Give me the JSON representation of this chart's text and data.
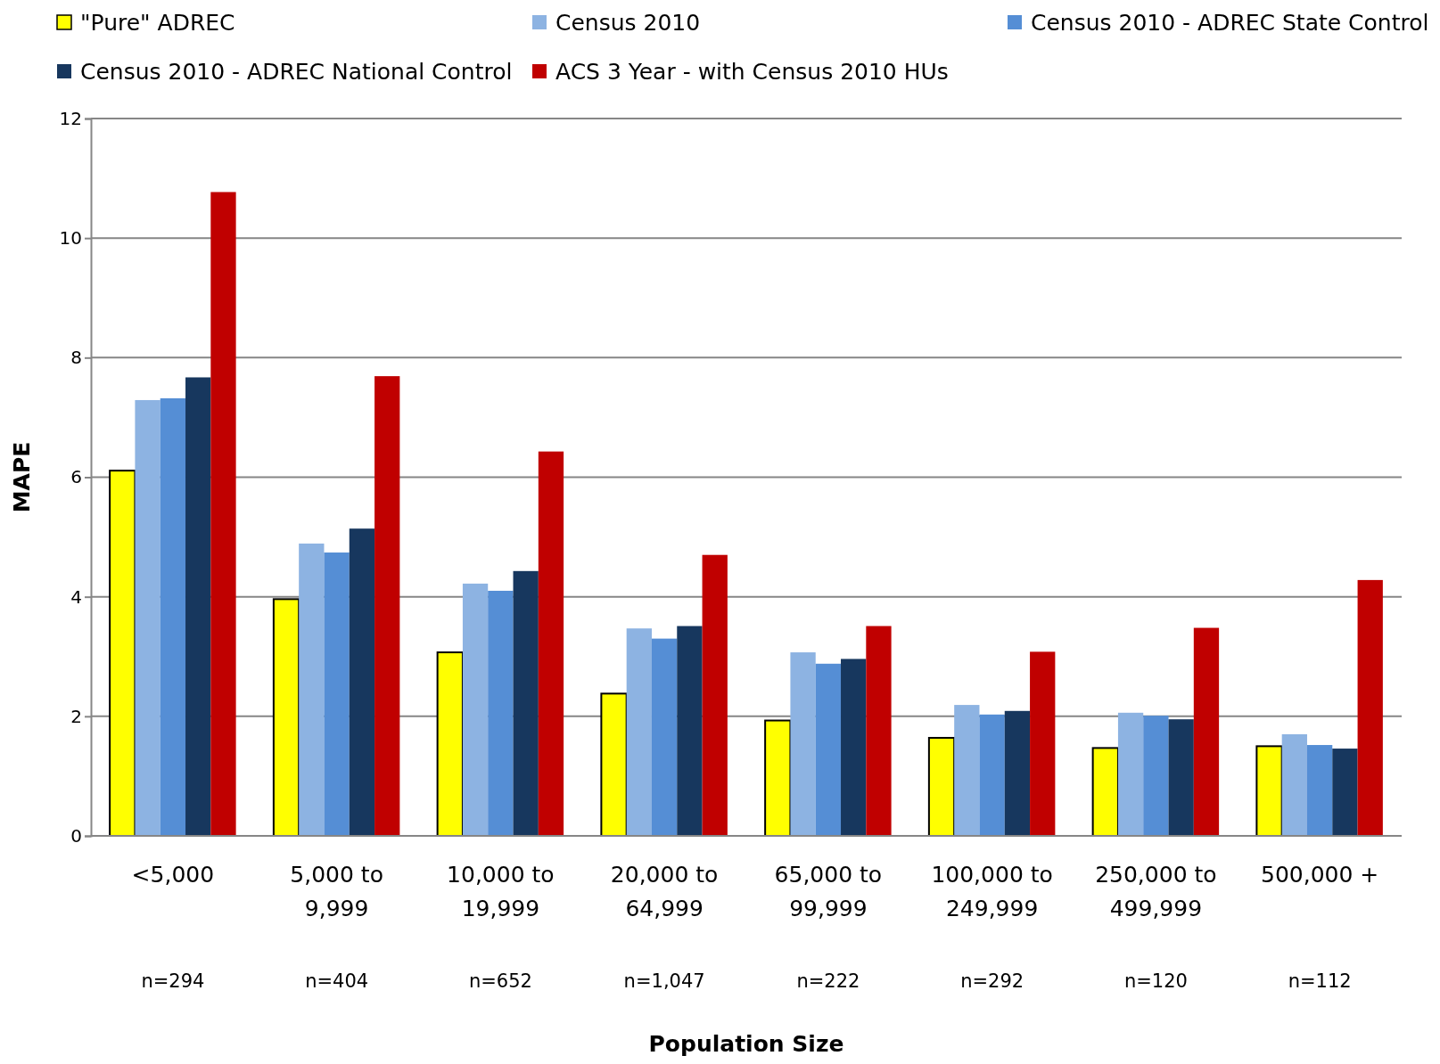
{
  "chart_data": {
    "type": "bar",
    "categories": [
      "<5,000",
      "5,000 to 9,999",
      "10,000 to 19,999",
      "20,000 to 64,999",
      "65,000 to 99,999",
      "100,000 to 249,999",
      "250,000 to 499,999",
      "500,000 +"
    ],
    "series": [
      {
        "name": "\"Pure\" ADREC",
        "color": "#ffff00",
        "values": [
          6.11,
          3.96,
          3.07,
          2.38,
          1.93,
          1.64,
          1.47,
          1.5
        ]
      },
      {
        "name": "Census 2010",
        "color": "#8db3e2",
        "values": [
          7.29,
          4.89,
          4.22,
          3.47,
          3.07,
          2.19,
          2.06,
          1.7
        ]
      },
      {
        "name": "Census 2010 - ADREC State Control",
        "color": "#558ed5",
        "values": [
          7.32,
          4.74,
          4.1,
          3.3,
          2.88,
          2.03,
          2.01,
          1.52
        ]
      },
      {
        "name": "Census 2010 - ADREC National Control",
        "color": "#17375e",
        "values": [
          7.67,
          5.14,
          4.43,
          3.51,
          2.96,
          2.09,
          1.95,
          1.46
        ]
      },
      {
        "name": "ACS 3 Year - with Census 2010 HUs",
        "color": "#c00000",
        "values": [
          10.77,
          7.69,
          6.43,
          4.7,
          3.51,
          3.08,
          3.48,
          4.28
        ]
      }
    ],
    "ylim": [
      0,
      12
    ],
    "yticks": [
      0,
      2,
      4,
      6,
      8,
      10,
      12
    ],
    "grid": "y",
    "legend": "top",
    "xlabel": "Population Size",
    "ylabel": "MAPE",
    "annotations": [
      "n=294",
      "n=404",
      "n=652",
      "n=1,047",
      "n=222",
      "n=292",
      "n=120",
      "n=112"
    ]
  }
}
